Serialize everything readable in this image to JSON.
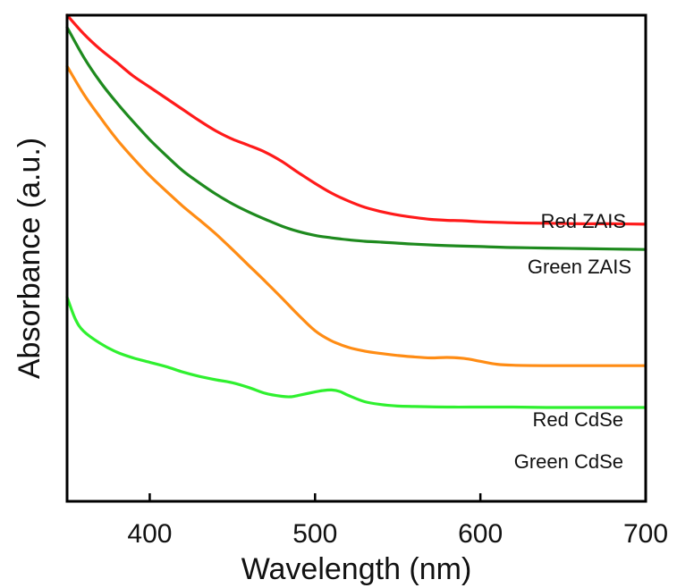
{
  "chart_data": {
    "type": "line",
    "title": "",
    "xlabel": "Wavelength (nm)",
    "ylabel": "Absorbance (a.u.)",
    "xlim": [
      350,
      700
    ],
    "ylim": [
      0,
      1
    ],
    "xticks": [
      400,
      500,
      600,
      700
    ],
    "yticks": [],
    "grid": false,
    "legend": "none",
    "series": [
      {
        "name": "Red ZAIS",
        "color": "#ff1a1a",
        "x": [
          350,
          360,
          370,
          380,
          390,
          400,
          410,
          420,
          430,
          440,
          450,
          460,
          470,
          480,
          490,
          500,
          510,
          520,
          530,
          540,
          550,
          560,
          570,
          580,
          590,
          600,
          620,
          640,
          660,
          680,
          700
        ],
        "y": [
          1.0,
          0.962,
          0.93,
          0.903,
          0.875,
          0.852,
          0.829,
          0.806,
          0.783,
          0.762,
          0.745,
          0.732,
          0.718,
          0.699,
          0.676,
          0.654,
          0.634,
          0.618,
          0.605,
          0.596,
          0.589,
          0.584,
          0.58,
          0.578,
          0.577,
          0.575,
          0.573,
          0.572,
          0.571,
          0.571,
          0.57
        ]
      },
      {
        "name": "Green ZAIS",
        "color": "#1e8a1e",
        "x": [
          350,
          360,
          370,
          380,
          390,
          400,
          410,
          420,
          430,
          440,
          450,
          460,
          470,
          480,
          490,
          500,
          510,
          520,
          530,
          540,
          550,
          560,
          580,
          600,
          620,
          640,
          660,
          680,
          700
        ],
        "y": [
          0.975,
          0.914,
          0.863,
          0.82,
          0.781,
          0.744,
          0.711,
          0.68,
          0.655,
          0.632,
          0.612,
          0.595,
          0.58,
          0.566,
          0.555,
          0.547,
          0.542,
          0.538,
          0.535,
          0.533,
          0.531,
          0.529,
          0.526,
          0.524,
          0.522,
          0.521,
          0.52,
          0.519,
          0.518
        ]
      },
      {
        "name": "Red CdSe",
        "color": "#ff8c14",
        "x": [
          350,
          360,
          370,
          380,
          390,
          400,
          410,
          420,
          430,
          440,
          450,
          460,
          470,
          480,
          490,
          500,
          510,
          520,
          530,
          540,
          550,
          560,
          570,
          580,
          590,
          600,
          610,
          620,
          640,
          660,
          680,
          700
        ],
        "y": [
          0.895,
          0.838,
          0.79,
          0.745,
          0.706,
          0.67,
          0.638,
          0.607,
          0.579,
          0.55,
          0.518,
          0.485,
          0.452,
          0.418,
          0.383,
          0.351,
          0.33,
          0.317,
          0.309,
          0.304,
          0.3,
          0.297,
          0.295,
          0.296,
          0.294,
          0.288,
          0.282,
          0.28,
          0.279,
          0.279,
          0.279,
          0.279
        ]
      },
      {
        "name": "Green CdSe",
        "color": "#2ff02f",
        "x": [
          350,
          355,
          360,
          370,
          380,
          390,
          400,
          410,
          420,
          430,
          440,
          450,
          460,
          470,
          480,
          485,
          490,
          500,
          505,
          510,
          515,
          520,
          530,
          540,
          550,
          560,
          580,
          600,
          620,
          640,
          660,
          680,
          700
        ],
        "y": [
          0.42,
          0.375,
          0.35,
          0.325,
          0.307,
          0.295,
          0.286,
          0.277,
          0.266,
          0.257,
          0.25,
          0.244,
          0.234,
          0.222,
          0.216,
          0.215,
          0.218,
          0.225,
          0.228,
          0.229,
          0.226,
          0.218,
          0.205,
          0.199,
          0.196,
          0.195,
          0.194,
          0.194,
          0.194,
          0.193,
          0.193,
          0.193,
          0.193
        ]
      }
    ]
  }
}
